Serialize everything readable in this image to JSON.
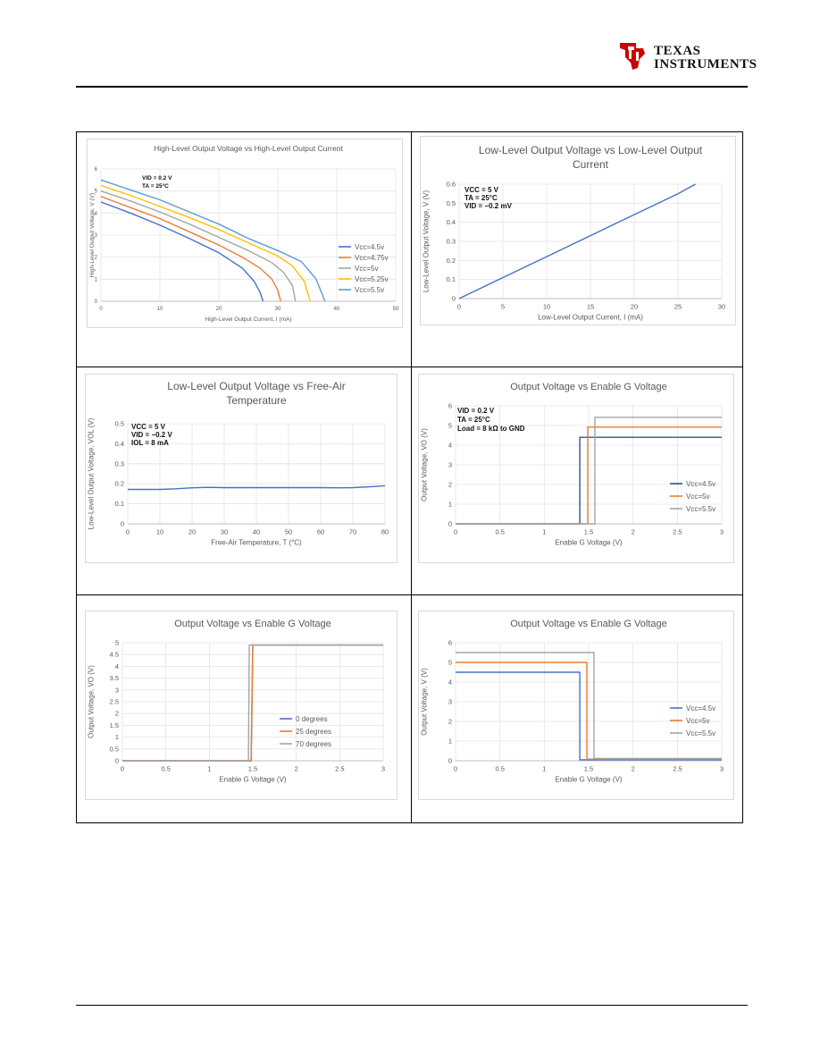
{
  "logo": {
    "line1": "TEXAS",
    "line2": "INSTRUMENTS"
  },
  "chart_data": [
    {
      "type": "line",
      "title": "High-Level Output Voltage vs High-Level Output Current",
      "xlabel": "High-Level Output Current, I (mA)",
      "ylabel": "High-Level Output Voltage, V (V)",
      "xlim": [
        0,
        50
      ],
      "ylim": [
        0,
        6
      ],
      "xticks": [
        0,
        10,
        20,
        30,
        40,
        50
      ],
      "yticks": [
        0,
        1,
        2,
        3,
        4,
        5,
        6
      ],
      "grid": true,
      "legend": "right",
      "annotations": [
        "VID = 0.2 V",
        "TA = 25°C"
      ],
      "series": [
        {
          "name": "Vcc=4.5v",
          "color": "#4472C4",
          "x": [
            0,
            5,
            10,
            15,
            20,
            24,
            26,
            27,
            27.5
          ],
          "y": [
            4.5,
            4.0,
            3.45,
            2.85,
            2.2,
            1.5,
            0.9,
            0.4,
            0
          ]
        },
        {
          "name": "Vcc=4.75v",
          "color": "#ED7D31",
          "x": [
            0,
            5,
            10,
            15,
            20,
            24,
            27,
            29,
            30,
            30.5
          ],
          "y": [
            4.75,
            4.25,
            3.75,
            3.15,
            2.55,
            2.0,
            1.5,
            1.0,
            0.5,
            0
          ]
        },
        {
          "name": "Vcc=5v",
          "color": "#A5A5A5",
          "x": [
            0,
            5,
            10,
            15,
            20,
            25,
            29,
            31,
            32.5,
            33
          ],
          "y": [
            5.0,
            4.55,
            4.05,
            3.5,
            2.9,
            2.3,
            1.75,
            1.3,
            0.7,
            0
          ]
        },
        {
          "name": "Vcc=5.25v",
          "color": "#FFC000",
          "x": [
            0,
            5,
            10,
            15,
            20,
            25,
            30,
            32.5,
            34.5,
            35.5
          ],
          "y": [
            5.25,
            4.8,
            4.3,
            3.8,
            3.25,
            2.65,
            2.05,
            1.6,
            0.9,
            0
          ]
        },
        {
          "name": "Vcc=5.5v",
          "color": "#5B9BD5",
          "x": [
            0,
            5,
            10,
            15,
            20,
            25,
            30,
            34,
            36.5,
            38
          ],
          "y": [
            5.5,
            5.05,
            4.6,
            4.05,
            3.5,
            2.85,
            2.3,
            1.8,
            1.0,
            0
          ]
        }
      ]
    },
    {
      "type": "line",
      "title": "Low-Level Output Voltage vs Low-Level Output Current",
      "xlabel": "Low-Level Output Current, I (mA)",
      "ylabel": "Low-Level Output Voltage, V (V)",
      "xlim": [
        0,
        30
      ],
      "ylim": [
        0,
        0.6
      ],
      "xticks": [
        0,
        5,
        10,
        15,
        20,
        25,
        30
      ],
      "yticks": [
        "0",
        "0.1",
        "0.2",
        "0.3",
        "0.4",
        "0.5",
        "0.6"
      ],
      "grid": true,
      "annotations": [
        "VCC = 5 V",
        "TA = 25°C",
        "VID = −0.2 mV"
      ],
      "series": [
        {
          "color": "#4472C4",
          "x": [
            0,
            5,
            10,
            15,
            20,
            25,
            27
          ],
          "y": [
            0,
            0.11,
            0.22,
            0.33,
            0.44,
            0.55,
            0.6
          ]
        }
      ]
    },
    {
      "type": "line",
      "title": "Low-Level Output Voltage vs Free-Air Temperature",
      "xlabel": "Free-Air Temperature, T (°C)",
      "ylabel": "Low-Level Output Voltage, VOL (V)",
      "xlim": [
        0,
        80
      ],
      "ylim": [
        0,
        0.5
      ],
      "xticks": [
        0,
        10,
        20,
        30,
        40,
        50,
        60,
        70,
        80
      ],
      "yticks": [
        "0",
        "0.1",
        "0.2",
        "0.3",
        "0.4",
        "0.5"
      ],
      "grid": true,
      "annotations": [
        "VCC = 5 V",
        "VID = −0.2 V",
        "IOL = 8 mA"
      ],
      "series": [
        {
          "color": "#4472C4",
          "x": [
            0,
            5,
            10,
            15,
            20,
            25,
            30,
            40,
            50,
            60,
            65,
            70,
            75,
            80
          ],
          "y": [
            0.172,
            0.172,
            0.172,
            0.175,
            0.18,
            0.182,
            0.181,
            0.181,
            0.181,
            0.181,
            0.18,
            0.181,
            0.185,
            0.19
          ]
        }
      ]
    },
    {
      "type": "line",
      "title": "Output Voltage vs Enable G Voltage",
      "xlabel": "Enable G Voltage (V)",
      "ylabel": "Output Voltage, VO (V)",
      "xlim": [
        0,
        3
      ],
      "ylim": [
        0,
        6
      ],
      "xticks": [
        "0",
        "0.5",
        "1",
        "1.5",
        "2",
        "2.5",
        "3"
      ],
      "yticks": [
        "0",
        "1",
        "2",
        "3",
        "4",
        "5",
        "6"
      ],
      "grid": true,
      "legend": "bottom-right",
      "annotations": [
        "VID = 0.2 V",
        "TA = 25°C",
        "Load = 8 kΩ to GND"
      ],
      "series": [
        {
          "name": "Vcc=4.5v",
          "color": "#2F5597",
          "x": [
            0,
            1.4,
            1.4,
            3
          ],
          "y": [
            0,
            0,
            4.4,
            4.4
          ]
        },
        {
          "name": "Vcc=5v",
          "color": "#ED7D31",
          "x": [
            0,
            1.49,
            1.49,
            3
          ],
          "y": [
            0,
            0,
            4.92,
            4.92
          ]
        },
        {
          "name": "Vcc=5.5v",
          "color": "#A5A5A5",
          "x": [
            0,
            1.57,
            1.57,
            3
          ],
          "y": [
            0,
            0,
            5.42,
            5.42
          ]
        }
      ]
    },
    {
      "type": "line",
      "title": "Output Voltage vs Enable G Voltage",
      "xlabel": "Enable G Voltage (V)",
      "ylabel": "Output Voltage, VO (V)",
      "xlim": [
        0,
        3
      ],
      "ylim": [
        0,
        5
      ],
      "xticks": [
        "0",
        "0.5",
        "1",
        "1.5",
        "2",
        "2.5",
        "3"
      ],
      "yticks": [
        "0",
        "0.5",
        "1",
        "1.5",
        "2",
        "2.5",
        "3",
        "3.5",
        "4",
        "4.5",
        "5"
      ],
      "grid": true,
      "legend": "bottom-right",
      "series": [
        {
          "name": "0 degrees",
          "color": "#4472C4",
          "x": [
            0,
            1.48,
            1.5,
            3
          ],
          "y": [
            0,
            0,
            4.9,
            4.9
          ]
        },
        {
          "name": "25 degrees",
          "color": "#ED7D31",
          "x": [
            0,
            1.48,
            1.5,
            3
          ],
          "y": [
            0,
            0,
            4.9,
            4.9
          ]
        },
        {
          "name": "70 degrees",
          "color": "#A5A5A5",
          "x": [
            0,
            1.45,
            1.46,
            3
          ],
          "y": [
            0,
            0,
            4.9,
            4.9
          ]
        }
      ]
    },
    {
      "type": "line",
      "title": "Output Voltage vs Enable G Voltage",
      "xlabel": "Enable G Voltage (V)",
      "ylabel": "Output Voltage, V (V)",
      "xlim": [
        0,
        3
      ],
      "ylim": [
        0,
        6
      ],
      "xticks": [
        "0",
        "0.5",
        "1",
        "1.5",
        "2",
        "2.5",
        "3"
      ],
      "yticks": [
        "0",
        "1",
        "2",
        "3",
        "4",
        "5",
        "6"
      ],
      "grid": true,
      "legend": "right",
      "series": [
        {
          "name": "Vcc=4.5v",
          "color": "#4472C4",
          "x": [
            0,
            1.4,
            1.4,
            3
          ],
          "y": [
            4.5,
            4.5,
            0.05,
            0.05
          ]
        },
        {
          "name": "Vcc=5v",
          "color": "#ED7D31",
          "x": [
            0,
            1.48,
            1.48,
            3
          ],
          "y": [
            5.0,
            5.0,
            0.08,
            0.08
          ]
        },
        {
          "name": "Vcc=5.5v",
          "color": "#A5A5A5",
          "x": [
            0,
            1.56,
            1.56,
            3
          ],
          "y": [
            5.5,
            5.5,
            0.12,
            0.12
          ]
        }
      ]
    }
  ]
}
